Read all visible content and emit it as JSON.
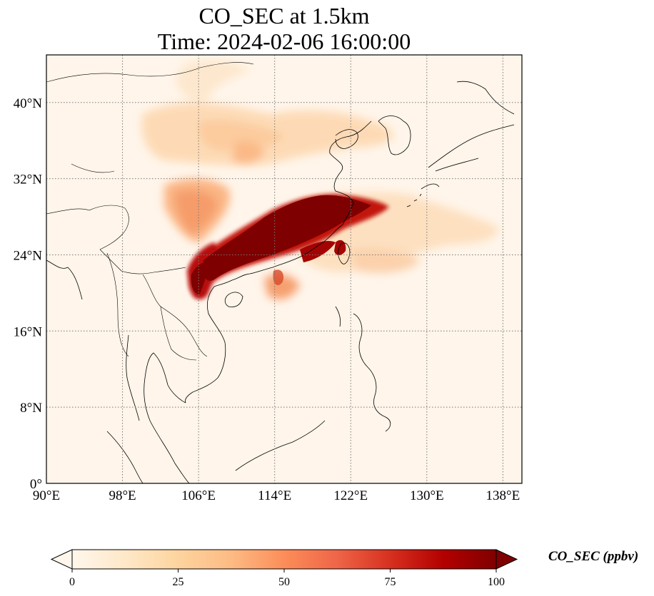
{
  "title_line1": "CO_SEC at 1.5km",
  "title_line2": "Time: 2024-02-06 16:00:00",
  "map": {
    "projection": "PlateCarree",
    "lon_range": [
      90,
      140
    ],
    "lat_range": [
      0,
      45
    ],
    "gridlines": "dotted",
    "lon_ticks": [
      {
        "value": 90,
        "label": "90°E"
      },
      {
        "value": 98,
        "label": "98°E"
      },
      {
        "value": 106,
        "label": "106°E"
      },
      {
        "value": 114,
        "label": "114°E"
      },
      {
        "value": 122,
        "label": "122°E"
      },
      {
        "value": 130,
        "label": "130°E"
      },
      {
        "value": 138,
        "label": "138°E"
      }
    ],
    "lat_ticks": [
      {
        "value": 0,
        "label": "0°"
      },
      {
        "value": 8,
        "label": "8°N"
      },
      {
        "value": 16,
        "label": "16°N"
      },
      {
        "value": 24,
        "label": "24°N"
      },
      {
        "value": 32,
        "label": "32°N"
      },
      {
        "value": 40,
        "label": "40°N"
      }
    ]
  },
  "colorbar": {
    "label": "CO_SEC (ppbv)",
    "colormap": "OrRd",
    "range": [
      0,
      100
    ],
    "extend": "both",
    "ticks": [
      {
        "value": 0,
        "label": "0"
      },
      {
        "value": 25,
        "label": "25"
      },
      {
        "value": 50,
        "label": "50"
      },
      {
        "value": 75,
        "label": "75"
      },
      {
        "value": 100,
        "label": "100"
      }
    ],
    "colors": [
      "#fff7ec",
      "#fee8c8",
      "#fdd49e",
      "#fdbb84",
      "#fc8d59",
      "#ef6548",
      "#d7301f",
      "#b30000",
      "#7f0000"
    ]
  }
}
